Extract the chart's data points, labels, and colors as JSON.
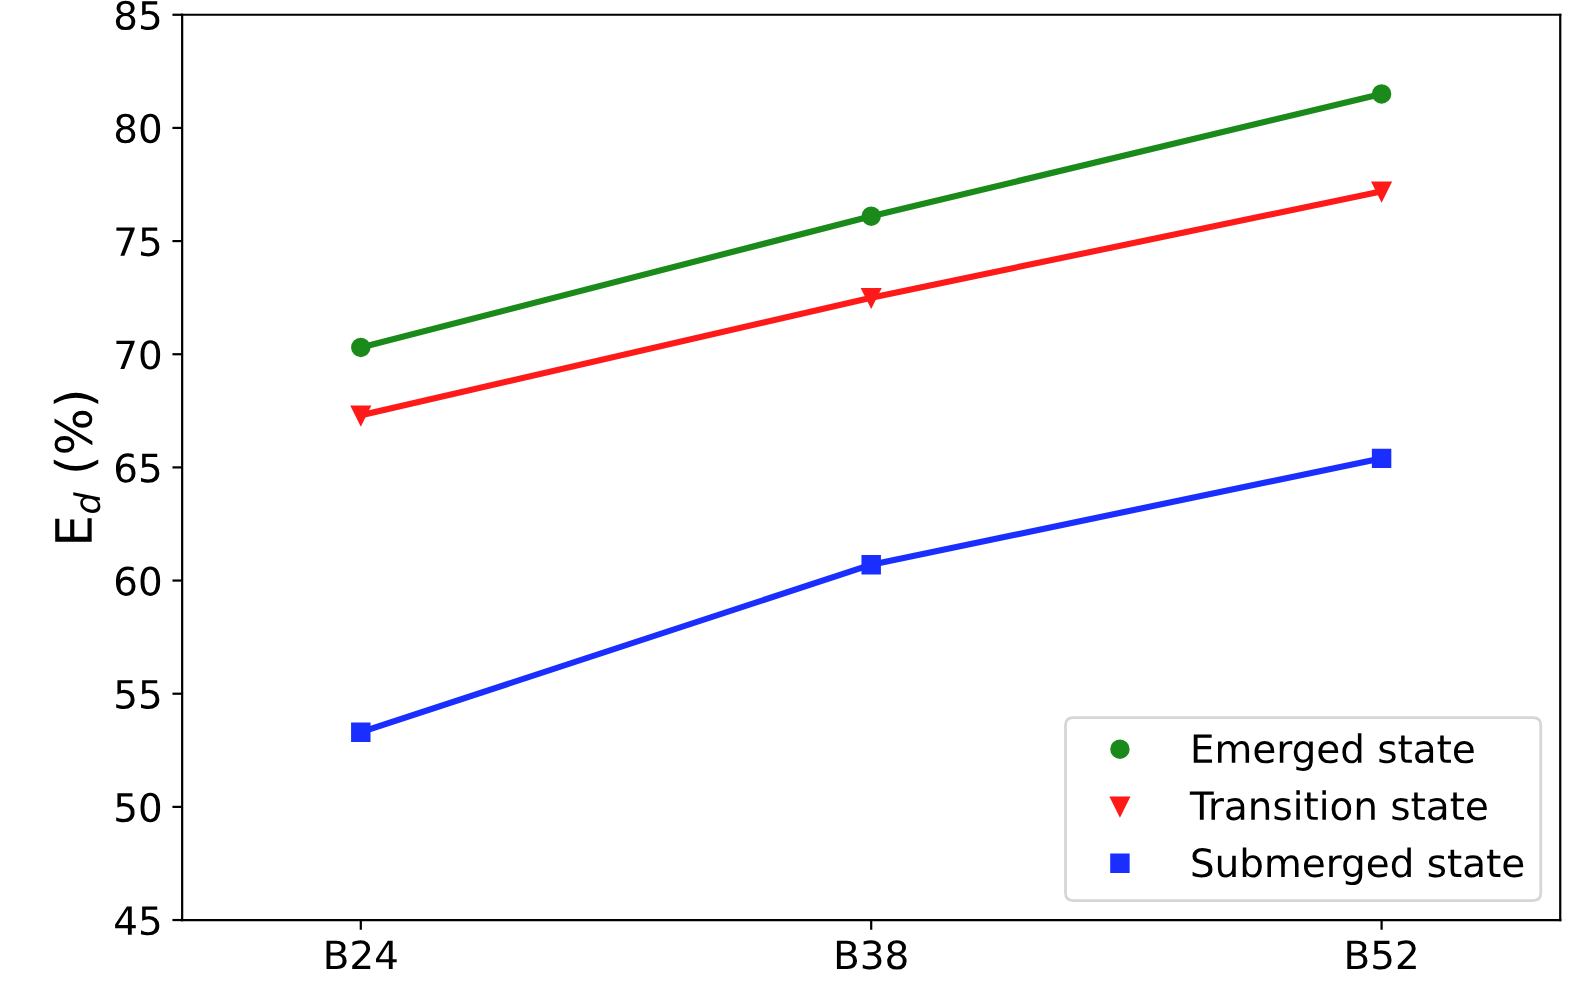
{
  "chart_data": {
    "type": "line",
    "ylabel": "E$_{d}$ (%)",
    "categories": [
      "B24",
      "B38",
      "B52"
    ],
    "series": [
      {
        "name": "Emerged state",
        "color": "#1a8a1a",
        "marker": "circle",
        "values": [
          70.3,
          76.1,
          81.5
        ]
      },
      {
        "name": "Transition state",
        "color": "#ff1a1a",
        "marker": "triangle",
        "values": [
          67.3,
          72.5,
          77.2
        ]
      },
      {
        "name": "Submerged state",
        "color": "#1a2eff",
        "marker": "square",
        "values": [
          53.3,
          60.7,
          65.4
        ]
      }
    ],
    "ylim": [
      45,
      85
    ],
    "yticks": [
      45,
      50,
      55,
      60,
      65,
      70,
      75,
      80,
      85
    ],
    "grid": false,
    "legend": "bottom right"
  }
}
